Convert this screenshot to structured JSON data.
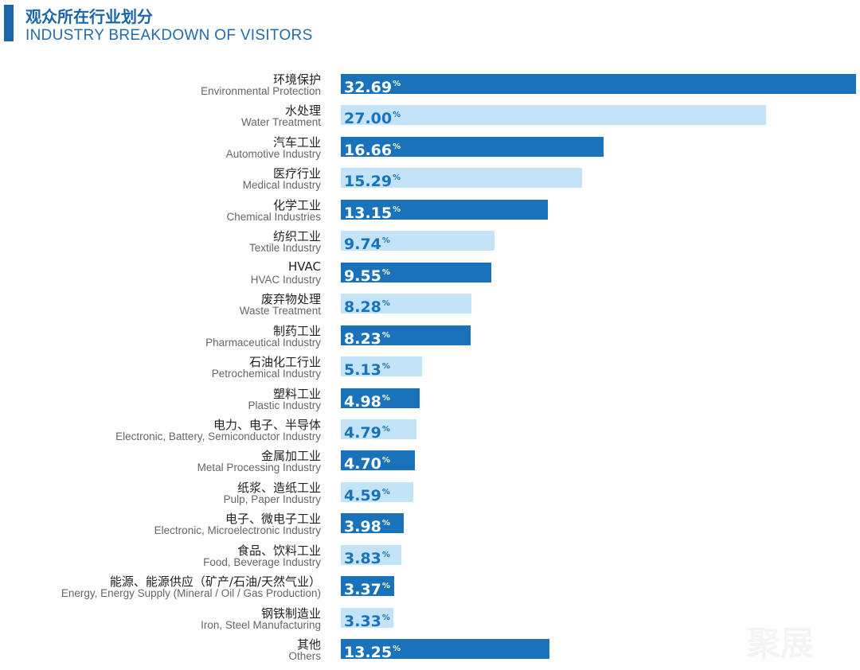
{
  "header": {
    "title_cn": "观众所在行业划分",
    "title_en": "INDUSTRY BREAKDOWN OF VISITORS"
  },
  "watermark": "聚展",
  "colors": {
    "dark": "#1a73ba",
    "light": "#c3e4f8",
    "dark_text": "#ffffff",
    "light_text": "#1a73ba"
  },
  "chart_data": {
    "type": "bar",
    "orientation": "horizontal",
    "title": "INDUSTRY BREAKDOWN OF VISITORS",
    "unit": "%",
    "categories": [
      {
        "cn": "环境保护",
        "en": "Environmental Protection"
      },
      {
        "cn": "水处理",
        "en": "Water Treatment"
      },
      {
        "cn": "汽车工业",
        "en": "Automotive Industry"
      },
      {
        "cn": "医疗行业",
        "en": "Medical Industry"
      },
      {
        "cn": "化学工业",
        "en": "Chemical Industries"
      },
      {
        "cn": "纺织工业",
        "en": "Textile Industry"
      },
      {
        "cn": "HVAC",
        "en": "HVAC Industry"
      },
      {
        "cn": "废弃物处理",
        "en": "Waste Treatment"
      },
      {
        "cn": "制药工业",
        "en": "Pharmaceutical Industry"
      },
      {
        "cn": "石油化工行业",
        "en": "Petrochemical Industry"
      },
      {
        "cn": "塑料工业",
        "en": "Plastic Industry"
      },
      {
        "cn": "电力、电子、半导体",
        "en": "Electronic, Battery, Semiconductor Industry"
      },
      {
        "cn": "金属加工业",
        "en": "Metal Processing Industry"
      },
      {
        "cn": "纸浆、造纸工业",
        "en": "Pulp, Paper Industry"
      },
      {
        "cn": "电子、微电子工业",
        "en": "Electronic, Microelectronic Industry"
      },
      {
        "cn": "食品、饮料工业",
        "en": "Food, Beverage Industry"
      },
      {
        "cn": "能源、能源供应（矿产/石油/天然气业）",
        "en": "Energy, Energy Supply (Mineral / Oil / Gas Production)"
      },
      {
        "cn": "钢铁制造业",
        "en": "Iron, Steel Manufacturing"
      },
      {
        "cn": "其他",
        "en": "Others"
      }
    ],
    "values": [
      32.69,
      27.0,
      16.66,
      15.29,
      13.15,
      9.74,
      9.55,
      8.28,
      8.23,
      5.13,
      4.98,
      4.79,
      4.7,
      4.59,
      3.98,
      3.83,
      3.37,
      3.33,
      13.25
    ],
    "value_labels": [
      "32.69",
      "27.00",
      "16.66",
      "15.29",
      "13.15",
      "9.74",
      "9.55",
      "8.28",
      "8.23",
      "5.13",
      "4.98",
      "4.79",
      "4.70",
      "4.59",
      "3.98",
      "3.83",
      "3.37",
      "3.33",
      "13.25"
    ],
    "xlim": [
      0,
      32.69
    ],
    "grid": false
  }
}
